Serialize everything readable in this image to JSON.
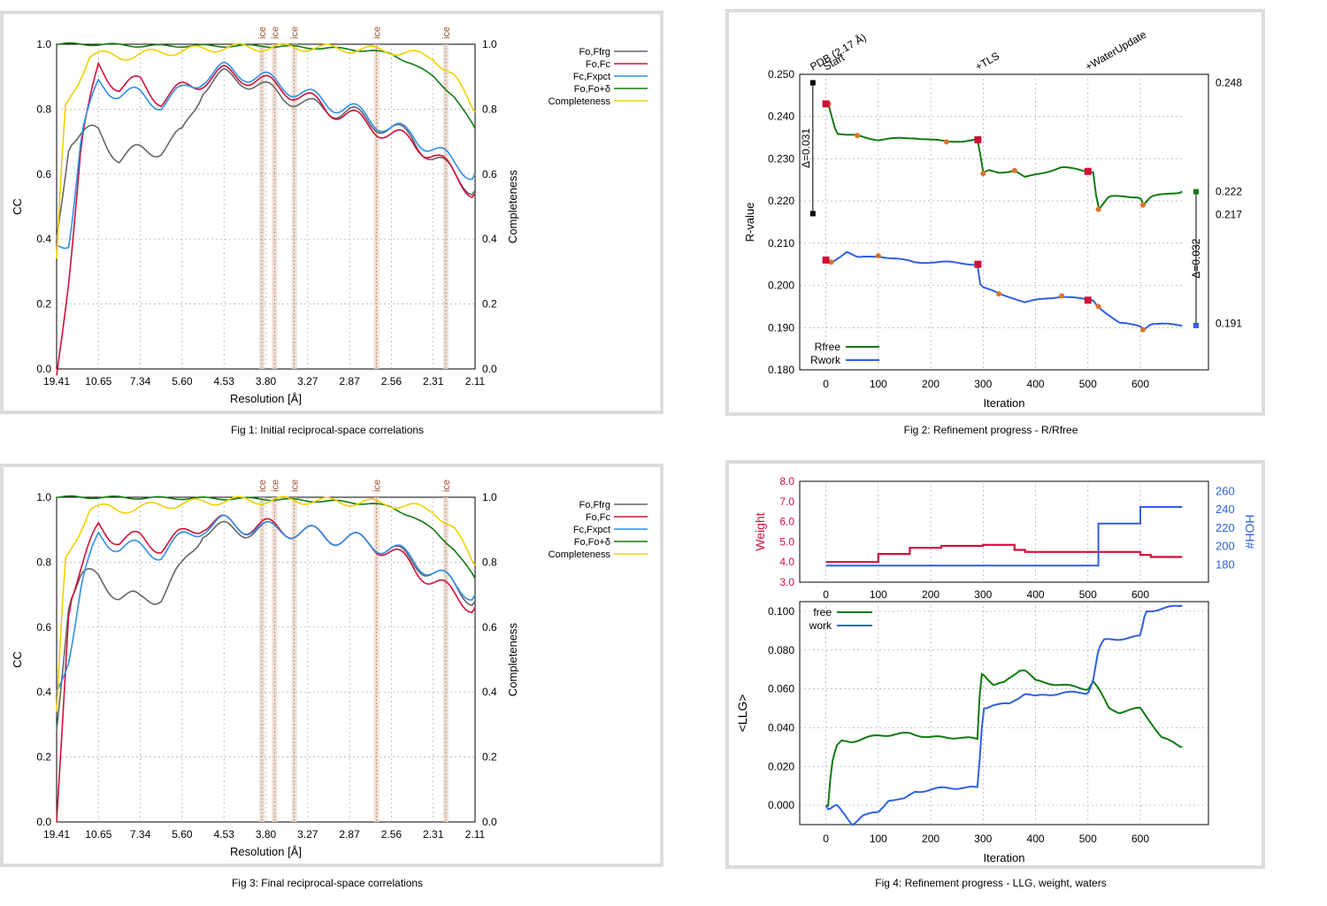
{
  "captions": {
    "fig1": "Fig 1:  Initial reciprocal-space correlations",
    "fig2": "Fig 2:  Refinement progress - R/Rfree",
    "fig3": "Fig 3:  Final reciprocal-space correlations",
    "fig4": "Fig 4:  Refinement progress - LLG, weight, waters"
  },
  "chart_data": [
    {
      "id": "fig1",
      "type": "line",
      "xlabel": "Resolution [Å]",
      "ylabel": "CC",
      "y2label": "Completeness",
      "ylim": [
        0,
        1
      ],
      "y2lim": [
        0,
        1
      ],
      "xticks": [
        "19.41",
        "10.65",
        "7.34",
        "5.60",
        "4.53",
        "3.80",
        "3.27",
        "2.87",
        "2.56",
        "2.31",
        "2.11"
      ],
      "yticks": [
        "0.0",
        "0.2",
        "0.4",
        "0.6",
        "0.8",
        "1.0"
      ],
      "ice_rings": {
        "label": "ice",
        "positions": [
          3.87,
          3.69,
          3.44,
          2.67,
          2.25
        ]
      },
      "legend": [
        "Fo,Ffrg",
        "Fo,Fc",
        "Fc,Fxpct",
        "Fo,Fo+δ",
        "Completeness"
      ],
      "colors": {
        "Fo,Ffrg": "#666666",
        "Fo,Fc": "#d0103a",
        "Fc,Fxpct": "#2f8fe8",
        "Fo,Fo+δ": "#117a11",
        "Completeness": "#f0d000"
      },
      "series": [
        {
          "name": "Fo,Ffrg",
          "x": [
            0,
            0.03,
            0.06,
            0.1,
            0.15,
            0.2,
            0.25,
            0.3,
            0.35,
            0.4,
            0.45,
            0.5,
            0.55,
            0.6,
            0.65,
            0.7,
            0.75,
            0.8,
            0.85,
            0.9,
            0.95,
            1
          ],
          "values": [
            0.4,
            0.71,
            0.72,
            0.73,
            0.65,
            0.67,
            0.68,
            0.72,
            0.87,
            0.9,
            0.89,
            0.86,
            0.84,
            0.81,
            0.8,
            0.79,
            0.76,
            0.74,
            0.71,
            0.65,
            0.6,
            0.55
          ]
        },
        {
          "name": "Fo,Fc",
          "x": [
            0,
            0.03,
            0.06,
            0.1,
            0.15,
            0.2,
            0.25,
            0.3,
            0.35,
            0.4,
            0.45,
            0.5,
            0.55,
            0.6,
            0.65,
            0.7,
            0.75,
            0.8,
            0.85,
            0.9,
            0.95,
            1
          ],
          "values": [
            -0.02,
            0.3,
            0.7,
            0.93,
            0.87,
            0.88,
            0.83,
            0.86,
            0.89,
            0.91,
            0.9,
            0.88,
            0.86,
            0.83,
            0.8,
            0.78,
            0.75,
            0.72,
            0.7,
            0.66,
            0.6,
            0.54
          ]
        },
        {
          "name": "Fc,Fxpct",
          "x": [
            0,
            0.03,
            0.06,
            0.1,
            0.15,
            0.2,
            0.25,
            0.3,
            0.35,
            0.4,
            0.45,
            0.5,
            0.55,
            0.6,
            0.65,
            0.7,
            0.75,
            0.8,
            0.85,
            0.9,
            0.95,
            1
          ],
          "values": [
            0.38,
            0.4,
            0.72,
            0.88,
            0.85,
            0.84,
            0.82,
            0.85,
            0.9,
            0.92,
            0.91,
            0.89,
            0.87,
            0.84,
            0.82,
            0.8,
            0.77,
            0.74,
            0.72,
            0.68,
            0.63,
            0.6
          ]
        },
        {
          "name": "Fo,Fo+δ",
          "x": [
            0,
            0.1,
            0.2,
            0.3,
            0.4,
            0.5,
            0.6,
            0.7,
            0.75,
            0.8,
            0.85,
            0.9,
            0.95,
            1
          ],
          "values": [
            1.0,
            1.0,
            0.995,
            0.995,
            0.995,
            0.995,
            0.99,
            0.985,
            0.98,
            0.97,
            0.94,
            0.9,
            0.84,
            0.74
          ]
        },
        {
          "name": "Completeness",
          "x": [
            0,
            0.02,
            0.05,
            0.08,
            0.1,
            0.15,
            0.2,
            0.3,
            0.4,
            0.5,
            0.6,
            0.7,
            0.8,
            0.85,
            0.9,
            0.95,
            1
          ],
          "values": [
            0.34,
            0.8,
            0.88,
            0.97,
            0.97,
            0.96,
            0.97,
            0.98,
            0.99,
            0.99,
            0.99,
            0.985,
            0.98,
            0.97,
            0.96,
            0.9,
            0.79
          ]
        }
      ]
    },
    {
      "id": "fig2",
      "type": "line",
      "xlabel": "Iteration",
      "ylabel": "R-value",
      "xlim": [
        -50,
        730
      ],
      "ylim": [
        0.18,
        0.25
      ],
      "xticks": [
        0,
        100,
        200,
        300,
        400,
        500,
        600
      ],
      "yticks": [
        "0.180",
        "0.190",
        "0.200",
        "0.210",
        "0.220",
        "0.230",
        "0.240",
        "0.250"
      ],
      "annotations_top": [
        "PDB (2.17 Å)",
        "Start",
        "+TLS",
        "+WaterUpdate"
      ],
      "right_values": [
        "0.248",
        "0.222",
        "0.217",
        "0.191"
      ],
      "deltas": [
        "Δ=0.031",
        "Δ=0.032"
      ],
      "legend": [
        "Rfree",
        "Rwork"
      ],
      "colors": {
        "Rfree": "#117a11",
        "Rwork": "#3060e0"
      },
      "series": [
        {
          "name": "Rfree",
          "x": [
            0,
            5,
            20,
            40,
            60,
            100,
            170,
            230,
            290,
            295,
            300,
            310,
            330,
            360,
            380,
            450,
            500,
            510,
            515,
            520,
            540,
            600,
            605,
            620,
            680
          ],
          "values": [
            0.243,
            0.243,
            0.236,
            0.2355,
            0.2355,
            0.2345,
            0.235,
            0.234,
            0.2345,
            0.2305,
            0.2265,
            0.2272,
            0.2268,
            0.2272,
            0.2255,
            0.228,
            0.227,
            0.227,
            0.222,
            0.218,
            0.221,
            0.221,
            0.219,
            0.221,
            0.2222
          ]
        },
        {
          "name": "Rwork",
          "x": [
            0,
            10,
            40,
            60,
            100,
            170,
            230,
            290,
            295,
            300,
            330,
            360,
            380,
            450,
            500,
            510,
            520,
            560,
            600,
            605,
            620,
            680
          ],
          "values": [
            0.206,
            0.2055,
            0.208,
            0.2065,
            0.207,
            0.2055,
            0.2055,
            0.205,
            0.2,
            0.1995,
            0.198,
            0.197,
            0.196,
            0.1975,
            0.1965,
            0.1965,
            0.195,
            0.191,
            0.1905,
            0.1895,
            0.191,
            0.1905
          ]
        }
      ]
    },
    {
      "id": "fig3",
      "type": "line",
      "xlabel": "Resolution [Å]",
      "ylabel": "CC",
      "y2label": "Completeness",
      "ylim": [
        0,
        1
      ],
      "y2lim": [
        0,
        1
      ],
      "xticks": [
        "19.41",
        "10.65",
        "7.34",
        "5.60",
        "4.53",
        "3.80",
        "3.27",
        "2.87",
        "2.56",
        "2.31",
        "2.11"
      ],
      "yticks": [
        "0.0",
        "0.2",
        "0.4",
        "0.6",
        "0.8",
        "1.0"
      ],
      "ice_rings": {
        "label": "ice",
        "positions": [
          3.87,
          3.69,
          3.44,
          2.67,
          2.25
        ]
      },
      "legend": [
        "Fo,Ffrg",
        "Fo,Fc",
        "Fc,Fxpct",
        "Fo,Fo+δ",
        "Completeness"
      ],
      "colors": {
        "Fo,Ffrg": "#666666",
        "Fo,Fc": "#d0103a",
        "Fc,Fxpct": "#2f8fe8",
        "Fo,Fo+δ": "#117a11",
        "Completeness": "#f0d000"
      },
      "series": [
        {
          "name": "Fo,Ffrg",
          "x": [
            0,
            0.03,
            0.06,
            0.1,
            0.15,
            0.2,
            0.25,
            0.3,
            0.35,
            0.4,
            0.45,
            0.5,
            0.55,
            0.6,
            0.65,
            0.7,
            0.75,
            0.8,
            0.85,
            0.9,
            0.95,
            1
          ],
          "values": [
            0.28,
            0.7,
            0.76,
            0.75,
            0.7,
            0.68,
            0.7,
            0.78,
            0.9,
            0.9,
            0.9,
            0.9,
            0.9,
            0.89,
            0.88,
            0.87,
            0.86,
            0.84,
            0.8,
            0.77,
            0.73,
            0.68
          ]
        },
        {
          "name": "Fo,Fc",
          "x": [
            0,
            0.03,
            0.06,
            0.1,
            0.15,
            0.2,
            0.25,
            0.3,
            0.35,
            0.4,
            0.45,
            0.5,
            0.55,
            0.6,
            0.65,
            0.7,
            0.75,
            0.8,
            0.85,
            0.9,
            0.95,
            1
          ],
          "values": [
            0.0,
            0.69,
            0.78,
            0.91,
            0.87,
            0.87,
            0.85,
            0.88,
            0.92,
            0.92,
            0.91,
            0.91,
            0.9,
            0.89,
            0.88,
            0.87,
            0.86,
            0.83,
            0.79,
            0.74,
            0.7,
            0.66
          ]
        },
        {
          "name": "Fc,Fxpct",
          "x": [
            0,
            0.03,
            0.06,
            0.1,
            0.15,
            0.2,
            0.25,
            0.3,
            0.35,
            0.4,
            0.45,
            0.5,
            0.55,
            0.6,
            0.65,
            0.7,
            0.75,
            0.8,
            0.85,
            0.9,
            0.95,
            1
          ],
          "values": [
            0.4,
            0.52,
            0.73,
            0.88,
            0.85,
            0.84,
            0.83,
            0.87,
            0.91,
            0.92,
            0.91,
            0.9,
            0.9,
            0.89,
            0.88,
            0.87,
            0.86,
            0.84,
            0.81,
            0.77,
            0.73,
            0.7
          ]
        },
        {
          "name": "Fo,Fo+δ",
          "x": [
            0,
            0.1,
            0.2,
            0.3,
            0.4,
            0.5,
            0.6,
            0.7,
            0.75,
            0.8,
            0.85,
            0.9,
            0.95,
            1
          ],
          "values": [
            1.0,
            1.0,
            0.998,
            0.997,
            0.996,
            0.995,
            0.99,
            0.985,
            0.98,
            0.97,
            0.94,
            0.9,
            0.84,
            0.75
          ]
        },
        {
          "name": "Completeness",
          "x": [
            0,
            0.02,
            0.05,
            0.08,
            0.1,
            0.15,
            0.2,
            0.3,
            0.4,
            0.5,
            0.6,
            0.7,
            0.8,
            0.85,
            0.9,
            0.95,
            1
          ],
          "values": [
            0.34,
            0.8,
            0.88,
            0.97,
            0.97,
            0.96,
            0.97,
            0.98,
            0.99,
            0.99,
            0.99,
            0.985,
            0.98,
            0.97,
            0.96,
            0.9,
            0.79
          ]
        }
      ]
    },
    {
      "id": "fig4",
      "type": "line",
      "xlabel": "Iteration",
      "ylabel": "<LLG>",
      "top_ylabel": "Weight",
      "top_y2label": "HOH#",
      "xlim": [
        -50,
        730
      ],
      "xticks": [
        0,
        100,
        200,
        300,
        400,
        500,
        600
      ],
      "top_yticks": [
        "3.0",
        "4.0",
        "5.0",
        "6.0",
        "7.0",
        "8.0"
      ],
      "top_y2ticks": [
        "180",
        "200",
        "220",
        "240",
        "260"
      ],
      "top_ylim": [
        3,
        8
      ],
      "top_y2lim": [
        160,
        270
      ],
      "yticks": [
        "0.000",
        "0.020",
        "0.040",
        "0.060",
        "0.080",
        "0.100"
      ],
      "ylim": [
        -0.01,
        0.105
      ],
      "legend": [
        "free",
        "work"
      ],
      "colors": {
        "free": "#117a11",
        "work": "#3060e0",
        "weight": "#d0103a",
        "hoh": "#3060e0"
      },
      "weight": {
        "x": [
          0,
          100,
          100,
          160,
          160,
          220,
          220,
          300,
          300,
          360,
          360,
          380,
          380,
          510,
          510,
          600,
          600,
          620,
          620,
          680
        ],
        "values": [
          4.0,
          4.0,
          4.4,
          4.4,
          4.7,
          4.7,
          4.8,
          4.8,
          4.85,
          4.85,
          4.6,
          4.6,
          4.5,
          4.5,
          4.5,
          4.5,
          4.35,
          4.35,
          4.25,
          4.25
        ]
      },
      "hoh": {
        "x": [
          0,
          520,
          520,
          600,
          600,
          680
        ],
        "values": [
          178,
          178,
          224,
          224,
          242,
          242
        ]
      },
      "series": [
        {
          "name": "free",
          "x": [
            0,
            5,
            10,
            20,
            30,
            50,
            100,
            160,
            200,
            250,
            290,
            295,
            300,
            320,
            340,
            370,
            380,
            400,
            450,
            500,
            510,
            520,
            540,
            560,
            600,
            620,
            640,
            680
          ],
          "values": [
            0.0,
            0.0,
            0.02,
            0.03,
            0.033,
            0.033,
            0.036,
            0.037,
            0.035,
            0.035,
            0.034,
            0.068,
            0.068,
            0.062,
            0.063,
            0.07,
            0.07,
            0.064,
            0.062,
            0.06,
            0.064,
            0.06,
            0.05,
            0.048,
            0.05,
            0.043,
            0.035,
            0.03
          ]
        },
        {
          "name": "work",
          "x": [
            0,
            5,
            20,
            50,
            70,
            100,
            120,
            150,
            170,
            200,
            230,
            290,
            295,
            300,
            320,
            350,
            370,
            380,
            400,
            450,
            500,
            510,
            520,
            530,
            600,
            610,
            680
          ],
          "values": [
            0.0,
            -0.002,
            0.0,
            -0.01,
            -0.005,
            -0.004,
            0.003,
            0.003,
            0.007,
            0.008,
            0.009,
            0.009,
            0.03,
            0.05,
            0.052,
            0.052,
            0.056,
            0.058,
            0.056,
            0.058,
            0.058,
            0.065,
            0.08,
            0.085,
            0.087,
            0.1,
            0.103
          ]
        }
      ]
    }
  ]
}
